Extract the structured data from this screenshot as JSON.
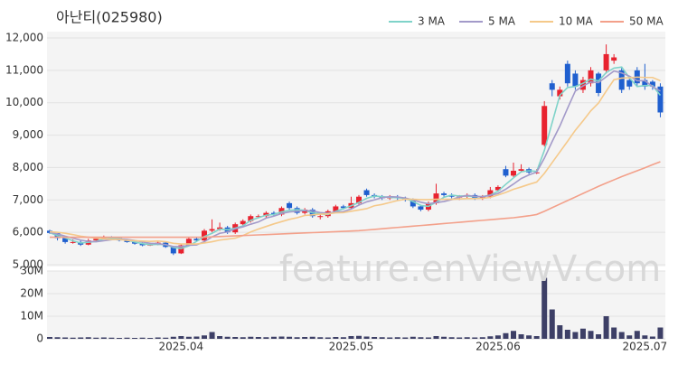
{
  "chart_data": {
    "type": "candlestick",
    "title": "아난티(025980)",
    "watermark": "feature.enViewV.com",
    "categories": [
      null,
      null,
      null,
      null,
      null,
      null,
      null,
      null,
      null,
      null,
      null,
      null,
      null,
      null,
      null,
      null,
      null,
      "2025.04",
      null,
      null,
      null,
      null,
      null,
      null,
      null,
      null,
      null,
      null,
      null,
      null,
      null,
      null,
      null,
      null,
      null,
      null,
      null,
      null,
      null,
      "2025.05",
      null,
      null,
      null,
      null,
      null,
      null,
      null,
      null,
      null,
      null,
      null,
      null,
      null,
      null,
      null,
      null,
      null,
      null,
      "2025.06",
      null,
      null,
      null,
      null,
      null,
      null,
      null,
      null,
      null,
      null,
      null,
      null,
      null,
      null,
      null,
      null,
      null,
      null,
      "2025.07",
      null,
      null
    ],
    "open": [
      6050,
      5980,
      5820,
      5700,
      5700,
      5620,
      5750,
      5800,
      5850,
      5820,
      5750,
      5700,
      5650,
      5600,
      5620,
      5680,
      5550,
      5350,
      5600,
      5800,
      5750,
      6050,
      6100,
      6150,
      6000,
      6250,
      6350,
      6500,
      6500,
      6600,
      6550,
      6900,
      6750,
      6600,
      6700,
      6500,
      6500,
      6650,
      6800,
      6750,
      6900,
      7300,
      7150,
      7100,
      7050,
      7100,
      7050,
      7000,
      6800,
      6700,
      6900,
      7200,
      7150,
      7100,
      7100,
      7150,
      7050,
      7100,
      7300,
      7950,
      7750,
      7900,
      7950,
      7850,
      8700,
      10600,
      10200,
      11200,
      10900,
      10400,
      10600,
      10900,
      11000,
      11300,
      11000,
      10700,
      11000,
      10700,
      10650,
      10500
    ],
    "high": [
      6080,
      6000,
      5850,
      5780,
      5760,
      5800,
      5850,
      5900,
      5880,
      5850,
      5780,
      5730,
      5680,
      5680,
      5720,
      5720,
      5580,
      5650,
      5850,
      5850,
      6100,
      6400,
      6300,
      6200,
      6300,
      6400,
      6550,
      6550,
      6650,
      6650,
      6800,
      6950,
      6800,
      6750,
      6750,
      6600,
      6700,
      6850,
      6850,
      7100,
      7150,
      7350,
      7200,
      7150,
      7150,
      7150,
      7100,
      7050,
      6850,
      6950,
      7500,
      7250,
      7200,
      7150,
      7200,
      7200,
      7150,
      7400,
      7450,
      8050,
      8150,
      8100,
      8000,
      7950,
      10050,
      10700,
      10500,
      11300,
      11000,
      10800,
      11100,
      10950,
      11800,
      11500,
      11100,
      10800,
      11100,
      11200,
      10700,
      10600
    ],
    "low": [
      5950,
      5750,
      5650,
      5650,
      5580,
      5600,
      5720,
      5780,
      5780,
      5720,
      5680,
      5620,
      5570,
      5580,
      5600,
      5520,
      5300,
      5330,
      5580,
      5720,
      5720,
      6000,
      6050,
      5950,
      5950,
      6200,
      6300,
      6450,
      6450,
      6500,
      6500,
      6700,
      6550,
      6550,
      6450,
      6400,
      6450,
      6600,
      6700,
      6700,
      6850,
      7100,
      7050,
      7000,
      7000,
      7000,
      6950,
      6750,
      6650,
      6650,
      6850,
      7100,
      7050,
      7000,
      7050,
      7000,
      7000,
      7050,
      7250,
      7700,
      7700,
      7850,
      7800,
      7800,
      8650,
      10200,
      10100,
      10500,
      10400,
      10300,
      10500,
      10200,
      10900,
      11200,
      10300,
      10400,
      10500,
      10400,
      10400,
      9550
    ],
    "close": [
      5980,
      5820,
      5700,
      5700,
      5620,
      5750,
      5800,
      5850,
      5820,
      5750,
      5700,
      5650,
      5600,
      5620,
      5680,
      5550,
      5350,
      5600,
      5800,
      5750,
      6050,
      6100,
      6150,
      6000,
      6250,
      6350,
      6500,
      6500,
      6600,
      6550,
      6750,
      6750,
      6600,
      6700,
      6500,
      6500,
      6650,
      6800,
      6750,
      6900,
      7100,
      7150,
      7100,
      7050,
      7100,
      7050,
      7000,
      6800,
      6700,
      6900,
      7200,
      7150,
      7100,
      7100,
      7150,
      7050,
      7100,
      7300,
      7400,
      7750,
      7900,
      7950,
      7850,
      7850,
      9900,
      10400,
      10400,
      10600,
      10500,
      10700,
      11000,
      10300,
      11500,
      11400,
      10400,
      10500,
      10600,
      10500,
      10500,
      9700
    ],
    "up_color": "#e8222f",
    "down_color": "#1f5fcf",
    "series": [
      {
        "name": "3 MA",
        "color": "#7fd3c9",
        "values": [
          5990,
          5900,
          5830,
          5740,
          5670,
          5690,
          5720,
          5800,
          5820,
          5810,
          5760,
          5700,
          5650,
          5620,
          5630,
          5620,
          5530,
          5500,
          5580,
          5720,
          5870,
          5970,
          6100,
          6080,
          6130,
          6200,
          6370,
          6450,
          6530,
          6550,
          6630,
          6680,
          6700,
          6680,
          6600,
          6570,
          6550,
          6650,
          6730,
          6820,
          6920,
          7050,
          7120,
          7100,
          7080,
          7070,
          7050,
          6950,
          6830,
          6800,
          6930,
          7080,
          7150,
          7120,
          7120,
          7100,
          7100,
          7150,
          7270,
          7480,
          7680,
          7870,
          7900,
          7880,
          8530,
          9380,
          10230,
          10470,
          10500,
          10600,
          10730,
          10670,
          10930,
          11070,
          11100,
          10770,
          10500,
          10530,
          10530,
          10230
        ]
      },
      {
        "name": "5 MA",
        "color": "#a39ac9",
        "values": [
          6000,
          5950,
          5880,
          5820,
          5760,
          5720,
          5710,
          5740,
          5770,
          5790,
          5780,
          5750,
          5700,
          5660,
          5650,
          5620,
          5560,
          5560,
          5600,
          5610,
          5710,
          5860,
          5970,
          6010,
          6110,
          6170,
          6250,
          6320,
          6440,
          6500,
          6580,
          6630,
          6650,
          6670,
          6660,
          6610,
          6590,
          6630,
          6640,
          6720,
          6840,
          6940,
          7000,
          7070,
          7100,
          7090,
          7060,
          7000,
          6930,
          6880,
          6920,
          6950,
          7010,
          7090,
          7140,
          7110,
          7100,
          7140,
          7200,
          7330,
          7490,
          7660,
          7770,
          7860,
          8290,
          8800,
          9280,
          9830,
          10360,
          10520,
          10640,
          10620,
          10800,
          10980,
          10920,
          10820,
          10680,
          10680,
          10500,
          10360
        ]
      },
      {
        "name": "10 MA",
        "color": "#f5c98a",
        "values": [
          6020,
          6000,
          5970,
          5930,
          5880,
          5850,
          5820,
          5800,
          5780,
          5780,
          5750,
          5740,
          5730,
          5720,
          5730,
          5710,
          5660,
          5640,
          5640,
          5640,
          5670,
          5710,
          5760,
          5790,
          5820,
          5900,
          6010,
          6100,
          6180,
          6260,
          6330,
          6400,
          6450,
          6520,
          6540,
          6560,
          6570,
          6600,
          6610,
          6650,
          6690,
          6730,
          6820,
          6860,
          6920,
          6980,
          7020,
          7020,
          7010,
          7010,
          7020,
          7020,
          7020,
          7030,
          7040,
          7040,
          7050,
          7080,
          7150,
          7230,
          7330,
          7400,
          7480,
          7550,
          7820,
          8150,
          8480,
          8810,
          9150,
          9440,
          9750,
          9990,
          10360,
          10710,
          10760,
          10770,
          10790,
          10780,
          10780,
          10680
        ]
      },
      {
        "name": "50 MA",
        "color": "#f3a08a",
        "values": [
          5850,
          5850,
          5850,
          5850,
          5850,
          5850,
          5850,
          5850,
          5850,
          5850,
          5850,
          5850,
          5850,
          5850,
          5850,
          5850,
          5850,
          5850,
          5850,
          5850,
          5850,
          5860,
          5870,
          5880,
          5890,
          5900,
          5910,
          5920,
          5930,
          5940,
          5950,
          5960,
          5970,
          5980,
          5990,
          6000,
          6010,
          6020,
          6030,
          6040,
          6050,
          6070,
          6090,
          6110,
          6130,
          6150,
          6170,
          6190,
          6210,
          6230,
          6250,
          6270,
          6290,
          6310,
          6330,
          6350,
          6370,
          6390,
          6410,
          6430,
          6450,
          6480,
          6510,
          6550,
          6650,
          6760,
          6870,
          6980,
          7090,
          7200,
          7310,
          7420,
          7520,
          7620,
          7720,
          7810,
          7900,
          7990,
          8090,
          8180
        ]
      }
    ],
    "ylim": [
      5000,
      12000
    ],
    "yticks": [
      {
        "value": 5000,
        "label": "5,000"
      },
      {
        "value": 6000,
        "label": "6,000"
      },
      {
        "value": 7000,
        "label": "7,000"
      },
      {
        "value": 8000,
        "label": "8,000"
      },
      {
        "value": 9000,
        "label": "9,000"
      },
      {
        "value": 10000,
        "label": "10,000"
      },
      {
        "value": 11000,
        "label": "11,000"
      },
      {
        "value": 12000,
        "label": "12,000"
      }
    ],
    "volume": [
      800000,
      700000,
      600000,
      500000,
      600000,
      700000,
      500000,
      600000,
      500000,
      400000,
      500000,
      400000,
      500000,
      400000,
      600000,
      500000,
      900000,
      1200000,
      900000,
      1000000,
      1500000,
      3000000,
      1200000,
      900000,
      800000,
      700000,
      900000,
      800000,
      700000,
      900000,
      1000000,
      900000,
      700000,
      800000,
      900000,
      700000,
      600000,
      800000,
      700000,
      1200000,
      1300000,
      1000000,
      800000,
      700000,
      600000,
      700000,
      600000,
      900000,
      700000,
      600000,
      1200000,
      900000,
      700000,
      600000,
      700000,
      600000,
      700000,
      1100000,
      1500000,
      2500000,
      3500000,
      2000000,
      1500000,
      1200000,
      27000000,
      13000000,
      6000000,
      4000000,
      3000000,
      4500000,
      3500000,
      2000000,
      10000000,
      5000000,
      3000000,
      1500000,
      3500000,
      1500000,
      1000000,
      5000000
    ],
    "volume_color": "#3d3f66",
    "volume_ylim": [
      0,
      30000000
    ],
    "volume_yticks": [
      0,
      {
        "value": 10000000,
        "label": "10M"
      },
      {
        "value": 20000000,
        "label": "20M"
      },
      {
        "value": 30000000,
        "label": "30M"
      }
    ],
    "grid": true,
    "legend": "top-right"
  }
}
